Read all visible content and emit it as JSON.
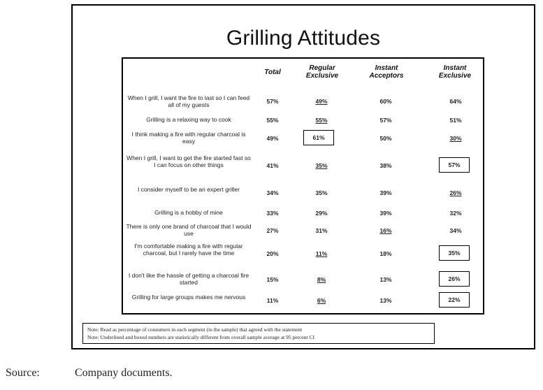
{
  "title": "Grilling Attitudes",
  "columns": [
    "Total",
    "Regular\nExclusive",
    "Instant\nAcceptors",
    "Instant\nExclusive"
  ],
  "rows": [
    {
      "statement": "When I grill, I want the fire to last so I can feed all of my guests",
      "total": "57%",
      "regular_exclusive": "49%",
      "instant_acceptors": "60%",
      "instant_exclusive": "64%"
    },
    {
      "statement": "Grilling is a relaxing way to cook",
      "total": "55%",
      "regular_exclusive": "55%",
      "instant_acceptors": "57%",
      "instant_exclusive": "51%"
    },
    {
      "statement": "I think making a fire with regular charcoal is easy",
      "total": "49%",
      "regular_exclusive": "61%",
      "instant_acceptors": "50%",
      "instant_exclusive": "30%"
    },
    {
      "statement": "When I grill, I want to get the fire started fast so I can focus on other things",
      "total": "41%",
      "regular_exclusive": "35%",
      "instant_acceptors": "38%",
      "instant_exclusive": "57%"
    },
    {
      "statement": "I consider myself to be an expert griller",
      "total": "34%",
      "regular_exclusive": "35%",
      "instant_acceptors": "39%",
      "instant_exclusive": "26%"
    },
    {
      "statement": "Grilling is a hobby of mine",
      "total": "33%",
      "regular_exclusive": "29%",
      "instant_acceptors": "39%",
      "instant_exclusive": "32%"
    },
    {
      "statement": "There is only one brand of charcoal that I would use",
      "total": "27%",
      "regular_exclusive": "31%",
      "instant_acceptors": "16%",
      "instant_exclusive": "34%"
    },
    {
      "statement": "I'm comfortable making a fire with regular charcoal, but I rarely have the time",
      "total": "20%",
      "regular_exclusive": "11%",
      "instant_acceptors": "18%",
      "instant_exclusive": "35%"
    },
    {
      "statement": "I don't like the hassle of getting a charcoal fire started",
      "total": "15%",
      "regular_exclusive": "8%",
      "instant_acceptors": "13%",
      "instant_exclusive": "26%"
    },
    {
      "statement": "Grilling for large groups makes me nervous",
      "total": "11%",
      "regular_exclusive": "6%",
      "instant_acceptors": "13%",
      "instant_exclusive": "22%"
    }
  ],
  "notes": [
    "Note:  Read as percentage of consumers in each segment (in the sample) that agreed with the statement",
    "Note:  Underlined and boxed numbers are statistically different from overall sample average at 95 percent CI"
  ],
  "source_label": "Source:",
  "source_text": "Company documents."
}
